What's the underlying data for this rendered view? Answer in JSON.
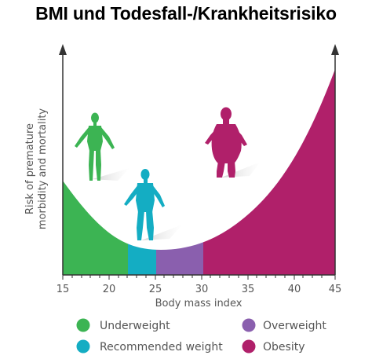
{
  "title": "BMI und Todesfall-/Krankheitsrisiko",
  "x_axis": {
    "label": "Body mass index",
    "ticks": [
      "15",
      "20",
      "25",
      "30",
      "35",
      "40",
      "45"
    ]
  },
  "y_axis": {
    "label_line1": "Risk of premature",
    "label_line2": "morbidity and mortality"
  },
  "legend": [
    {
      "label": "Underweight",
      "color": "#3cb453"
    },
    {
      "label": "Recommended weight",
      "color": "#14adc3"
    },
    {
      "label": "Overweight",
      "color": "#8a5fae"
    },
    {
      "label": "Obesity",
      "color": "#b0206a"
    }
  ],
  "figures": [
    {
      "name": "underweight-figure",
      "color": "#3cb453"
    },
    {
      "name": "recommended-weight-figure",
      "color": "#14adc3"
    },
    {
      "name": "obesity-figure",
      "color": "#b0206a"
    }
  ]
}
